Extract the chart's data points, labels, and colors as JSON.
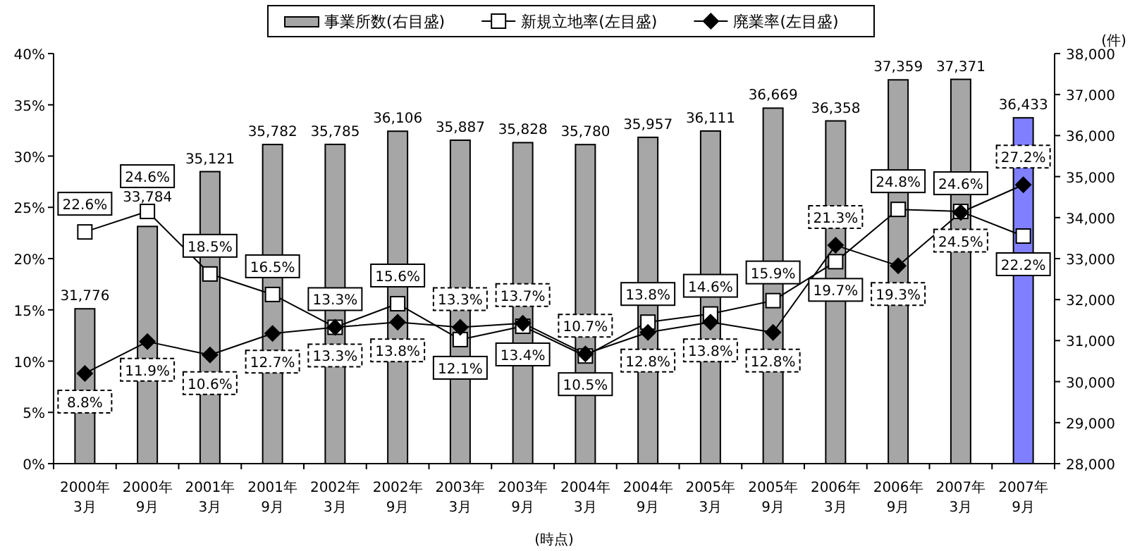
{
  "chart_data": {
    "type": "bar",
    "categories": [
      "2000年\n3月",
      "2000年\n9月",
      "2001年\n3月",
      "2001年\n9月",
      "2002年\n3月",
      "2002年\n9月",
      "2003年\n3月",
      "2003年\n9月",
      "2004年\n3月",
      "2004年\n9月",
      "2005年\n3月",
      "2005年\n9月",
      "2006年\n3月",
      "2006年\n9月",
      "2007年\n3月",
      "2007年\n9月"
    ],
    "series": [
      {
        "name": "事業所数(右目盛)",
        "axis": "y2",
        "colors": [
          "#a6a6a6",
          "#a6a6a6",
          "#a6a6a6",
          "#a6a6a6",
          "#a6a6a6",
          "#a6a6a6",
          "#a6a6a6",
          "#a6a6a6",
          "#a6a6a6",
          "#a6a6a6",
          "#a6a6a6",
          "#a6a6a6",
          "#a6a6a6",
          "#a6a6a6",
          "#a6a6a6",
          "#8080ff"
        ],
        "values": [
          31776,
          33784,
          35121,
          35782,
          35785,
          36106,
          35887,
          35828,
          35780,
          35957,
          36111,
          36669,
          36358,
          37359,
          37371,
          36433
        ],
        "value_labels": [
          "31,776",
          "33,784",
          "35,121",
          "35,782",
          "35,785",
          "36,106",
          "35,887",
          "35,828",
          "35,780",
          "35,957",
          "36,111",
          "36,669",
          "36,358",
          "37,359",
          "37,371",
          "36,433"
        ]
      },
      {
        "name": "新規立地率(左目盛)",
        "type": "line",
        "color": "#000000",
        "marker": "square",
        "line_style": "solid",
        "values": [
          22.6,
          24.6,
          18.5,
          16.5,
          13.3,
          15.6,
          12.1,
          13.4,
          10.5,
          13.8,
          14.6,
          15.9,
          19.7,
          24.8,
          24.6,
          22.2
        ],
        "value_labels": [
          "22.6%",
          "24.6%",
          "18.5%",
          "16.5%",
          "13.3%",
          "15.6%",
          "12.1%",
          "13.4%",
          "10.5%",
          "13.8%",
          "14.6%",
          "15.9%",
          "19.7%",
          "24.8%",
          "24.6%",
          "22.2%"
        ]
      },
      {
        "name": "廃業率(左目盛)",
        "type": "line",
        "color": "#000000",
        "marker": "diamond",
        "line_style": "solid",
        "values": [
          8.8,
          11.9,
          10.6,
          12.7,
          13.3,
          13.8,
          13.3,
          13.7,
          10.7,
          12.8,
          13.8,
          12.8,
          21.3,
          19.3,
          24.5,
          27.2
        ],
        "value_labels": [
          "8.8%",
          "11.9%",
          "10.6%",
          "12.7%",
          "13.3%",
          "13.8%",
          "13.3%",
          "13.7%",
          "10.7%",
          "12.8%",
          "13.8%",
          "12.8%",
          "21.3%",
          "19.3%",
          "24.5%",
          "27.2%"
        ]
      }
    ],
    "ylim": [
      0,
      40
    ],
    "yticks": [
      {
        "value": 0,
        "label": "0%"
      },
      {
        "value": 5,
        "label": "5%"
      },
      {
        "value": 10,
        "label": "10%"
      },
      {
        "value": 15,
        "label": "15%"
      },
      {
        "value": 20,
        "label": "20%"
      },
      {
        "value": 25,
        "label": "25%"
      },
      {
        "value": 30,
        "label": "30%"
      },
      {
        "value": 35,
        "label": "35%"
      },
      {
        "value": 40,
        "label": "40%"
      }
    ],
    "y2lim": [
      28000,
      38000
    ],
    "y2ticks": [
      {
        "value": 28000,
        "label": "28,000"
      },
      {
        "value": 29000,
        "label": "29,000"
      },
      {
        "value": 30000,
        "label": "30,000"
      },
      {
        "value": 31000,
        "label": "31,000"
      },
      {
        "value": 32000,
        "label": "32,000"
      },
      {
        "value": 33000,
        "label": "33,000"
      },
      {
        "value": 34000,
        "label": "34,000"
      },
      {
        "value": 35000,
        "label": "35,000"
      },
      {
        "value": 36000,
        "label": "36,000"
      },
      {
        "value": 37000,
        "label": "37,000"
      },
      {
        "value": 38000,
        "label": "38,000"
      }
    ],
    "y2label": "(件)",
    "xlabel": "(時点)",
    "legend": "top",
    "grid": false
  }
}
